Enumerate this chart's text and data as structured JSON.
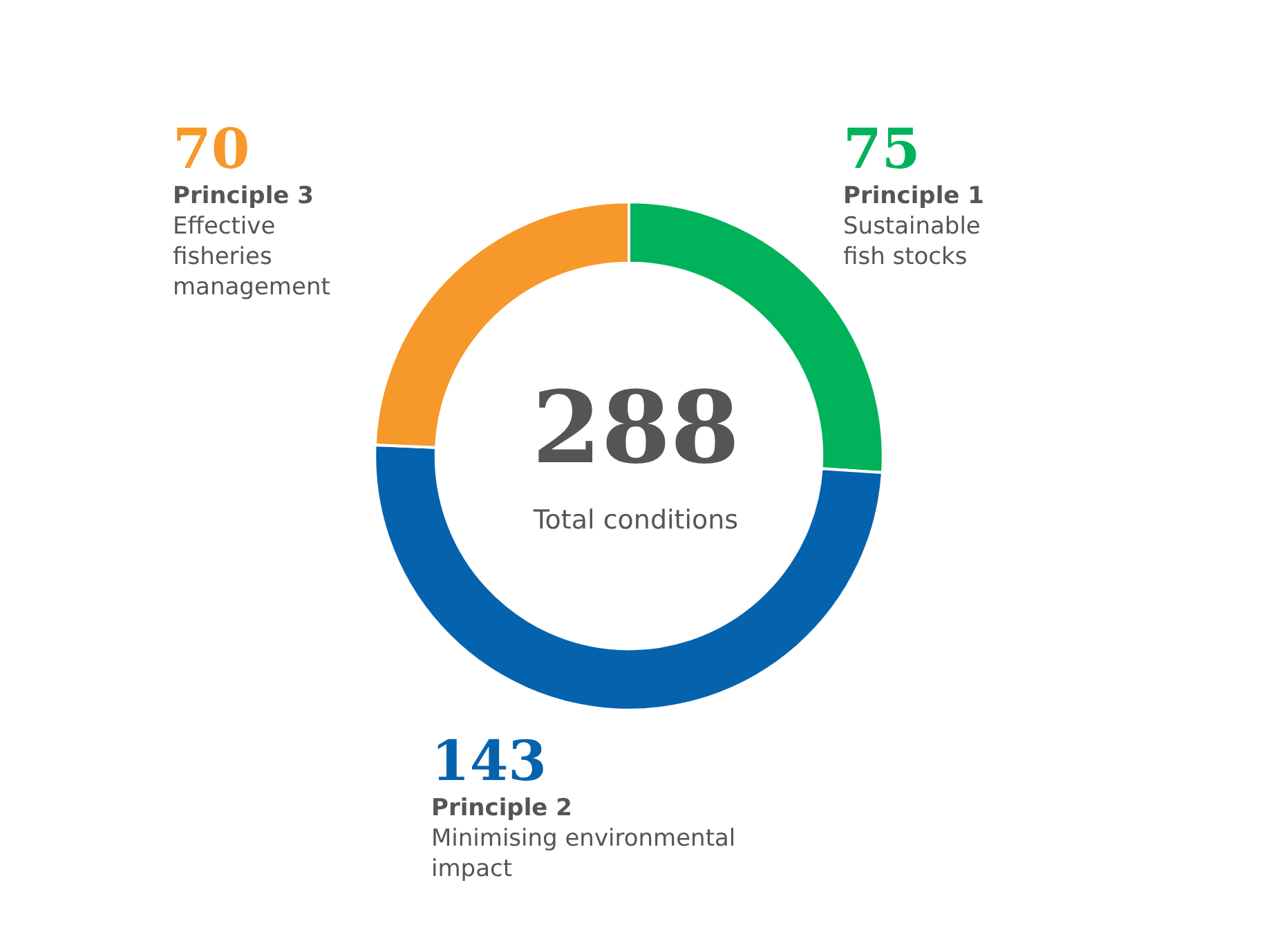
{
  "chart_data": {
    "type": "donut",
    "title": "288",
    "subtitle": "Total conditions",
    "categories": [
      "Principle 1 Sustainable fish stocks",
      "Principle 2 Minimising environmental impact",
      "Principle 3 Effective fisheries management"
    ],
    "values": [
      75,
      143,
      70
    ],
    "colors": [
      "#00b259",
      "#0563ae",
      "#f7982a"
    ],
    "data_labels": true,
    "legend": false
  }
}
